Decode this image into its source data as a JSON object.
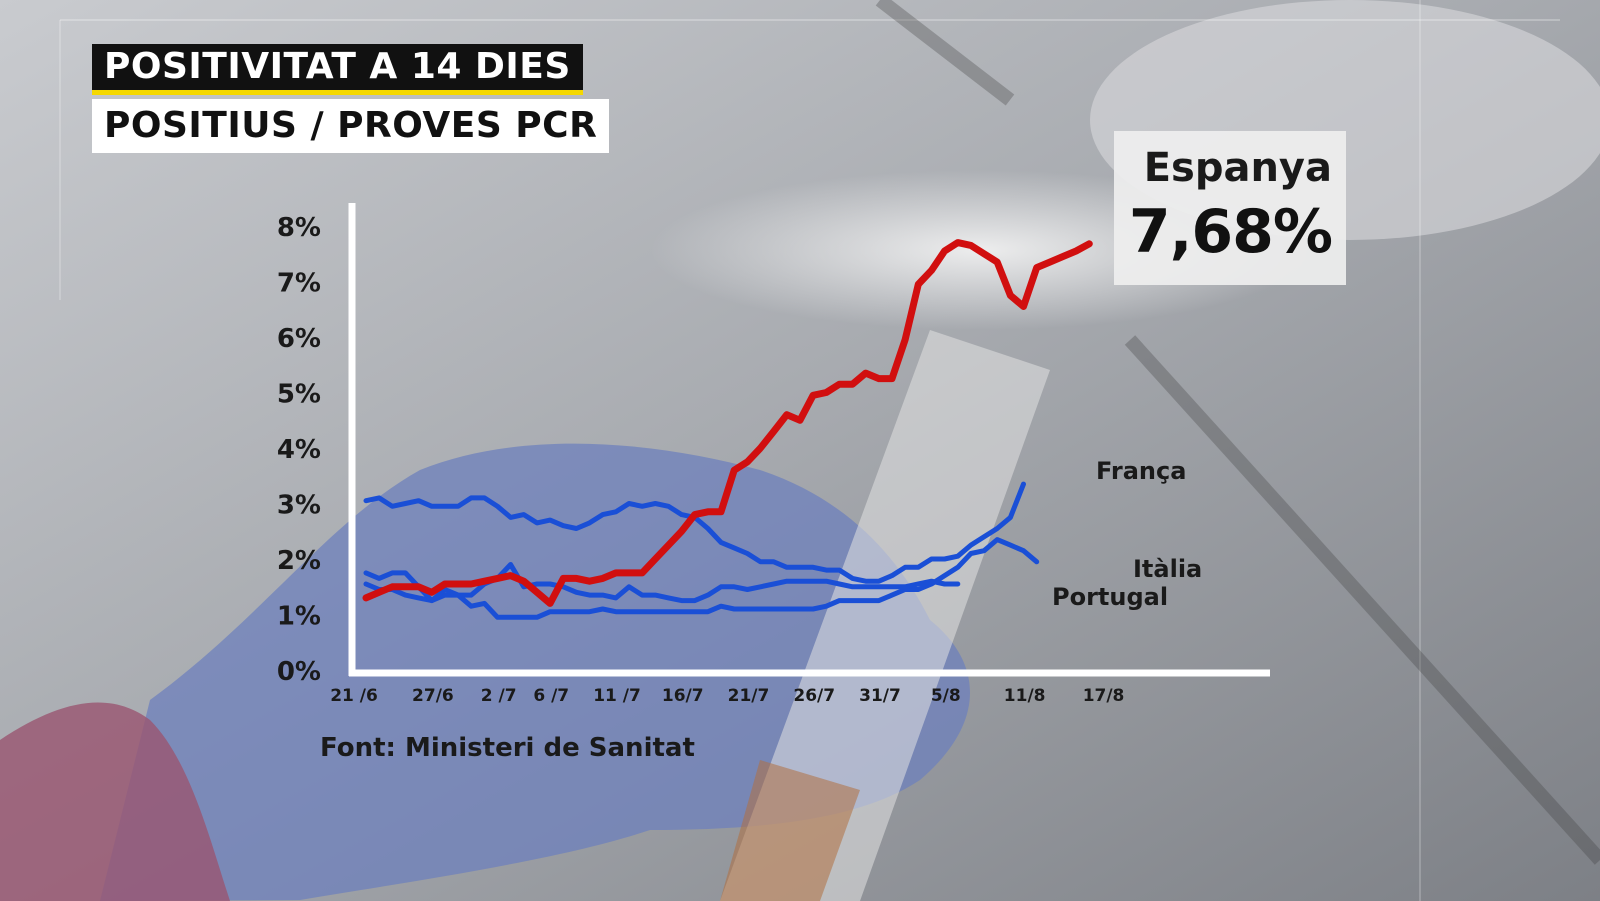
{
  "title": "POSITIVITAT A 14 DIES",
  "subtitle": "POSITIUS / PROVES PCR",
  "callout": {
    "country": "Espanya",
    "value": "7,68%"
  },
  "source": "Font: Ministeri de Sanitat",
  "colors": {
    "espanya": "#d10f0f",
    "others": "#1a4fd6",
    "accent": "#f5d800"
  },
  "chart_data": {
    "type": "line",
    "title": "POSITIVITAT A 14 DIES",
    "subtitle": "POSITIUS / PROVES PCR",
    "xlabel": "",
    "ylabel": "",
    "ylim": [
      0,
      8
    ],
    "grid": false,
    "yticks": [
      {
        "value": 0,
        "label": "0%"
      },
      {
        "value": 1,
        "label": "1%"
      },
      {
        "value": 2,
        "label": "2%"
      },
      {
        "value": 3,
        "label": "3%"
      },
      {
        "value": 4,
        "label": "4%"
      },
      {
        "value": 5,
        "label": "5%"
      },
      {
        "value": 6,
        "label": "6%"
      },
      {
        "value": 7,
        "label": "7%"
      },
      {
        "value": 8,
        "label": "8%"
      }
    ],
    "xticks": [
      {
        "day": 0,
        "label": "21 /6"
      },
      {
        "day": 6,
        "label": "27/6"
      },
      {
        "day": 11,
        "label": "2 /7"
      },
      {
        "day": 15,
        "label": "6 /7"
      },
      {
        "day": 20,
        "label": "11 /7"
      },
      {
        "day": 25,
        "label": "16/7"
      },
      {
        "day": 30,
        "label": "21/7"
      },
      {
        "day": 35,
        "label": "26/7"
      },
      {
        "day": 40,
        "label": "31/7"
      },
      {
        "day": 45,
        "label": "5/8"
      },
      {
        "day": 51,
        "label": "11/8"
      },
      {
        "day": 57,
        "label": "17/8"
      }
    ],
    "series": [
      {
        "name": "Espanya",
        "color": "#d10f0f",
        "width": 7,
        "points": [
          [
            0,
            1.3
          ],
          [
            1,
            1.4
          ],
          [
            2,
            1.5
          ],
          [
            3,
            1.5
          ],
          [
            4,
            1.5
          ],
          [
            5,
            1.4
          ],
          [
            6,
            1.55
          ],
          [
            7,
            1.55
          ],
          [
            8,
            1.55
          ],
          [
            9,
            1.6
          ],
          [
            10,
            1.65
          ],
          [
            11,
            1.7
          ],
          [
            12,
            1.6
          ],
          [
            13,
            1.4
          ],
          [
            14,
            1.2
          ],
          [
            15,
            1.65
          ],
          [
            16,
            1.65
          ],
          [
            17,
            1.6
          ],
          [
            18,
            1.65
          ],
          [
            19,
            1.75
          ],
          [
            20,
            1.75
          ],
          [
            21,
            1.75
          ],
          [
            22,
            2.0
          ],
          [
            23,
            2.25
          ],
          [
            24,
            2.5
          ],
          [
            25,
            2.8
          ],
          [
            26,
            2.85
          ],
          [
            27,
            2.85
          ],
          [
            28,
            3.6
          ],
          [
            29,
            3.75
          ],
          [
            30,
            4.0
          ],
          [
            31,
            4.3
          ],
          [
            32,
            4.6
          ],
          [
            33,
            4.5
          ],
          [
            34,
            4.95
          ],
          [
            35,
            5.0
          ],
          [
            36,
            5.15
          ],
          [
            37,
            5.15
          ],
          [
            38,
            5.35
          ],
          [
            39,
            5.25
          ],
          [
            40,
            5.25
          ],
          [
            41,
            5.95
          ],
          [
            42,
            6.95
          ],
          [
            43,
            7.2
          ],
          [
            44,
            7.55
          ],
          [
            45,
            7.7
          ],
          [
            46,
            7.65
          ],
          [
            47,
            7.5
          ],
          [
            48,
            7.35
          ],
          [
            49,
            6.75
          ],
          [
            50,
            6.55
          ],
          [
            51,
            7.25
          ],
          [
            52,
            7.35
          ],
          [
            53,
            7.45
          ],
          [
            54,
            7.55
          ],
          [
            55,
            7.68
          ]
        ]
      },
      {
        "name": "França",
        "color": "#1a4fd6",
        "width": 5,
        "points": [
          [
            0,
            3.05
          ],
          [
            1,
            3.1
          ],
          [
            2,
            2.95
          ],
          [
            3,
            3.0
          ],
          [
            4,
            3.05
          ],
          [
            5,
            2.95
          ],
          [
            6,
            2.95
          ],
          [
            7,
            2.95
          ],
          [
            8,
            3.1
          ],
          [
            9,
            3.1
          ],
          [
            10,
            2.95
          ],
          [
            11,
            2.75
          ],
          [
            12,
            2.8
          ],
          [
            13,
            2.65
          ],
          [
            14,
            2.7
          ],
          [
            15,
            2.6
          ],
          [
            16,
            2.55
          ],
          [
            17,
            2.65
          ],
          [
            18,
            2.8
          ],
          [
            19,
            2.85
          ],
          [
            20,
            3.0
          ],
          [
            21,
            2.95
          ],
          [
            22,
            3.0
          ],
          [
            23,
            2.95
          ],
          [
            24,
            2.8
          ],
          [
            25,
            2.75
          ],
          [
            26,
            2.55
          ],
          [
            27,
            2.3
          ],
          [
            28,
            2.2
          ],
          [
            29,
            2.1
          ],
          [
            30,
            1.95
          ],
          [
            31,
            1.95
          ],
          [
            32,
            1.85
          ],
          [
            33,
            1.85
          ],
          [
            34,
            1.85
          ],
          [
            35,
            1.8
          ],
          [
            36,
            1.8
          ],
          [
            37,
            1.65
          ],
          [
            38,
            1.6
          ],
          [
            39,
            1.6
          ],
          [
            40,
            1.7
          ],
          [
            41,
            1.85
          ],
          [
            42,
            1.85
          ],
          [
            43,
            2.0
          ],
          [
            44,
            2.0
          ],
          [
            45,
            2.05
          ],
          [
            46,
            2.25
          ],
          [
            47,
            2.4
          ],
          [
            48,
            2.55
          ],
          [
            49,
            2.75
          ],
          [
            50,
            3.35
          ]
        ]
      },
      {
        "name": "Itàlia",
        "color": "#1a4fd6",
        "width": 5,
        "points": [
          [
            0,
            1.55
          ],
          [
            1,
            1.45
          ],
          [
            2,
            1.45
          ],
          [
            3,
            1.35
          ],
          [
            4,
            1.3
          ],
          [
            5,
            1.25
          ],
          [
            6,
            1.35
          ],
          [
            7,
            1.35
          ],
          [
            8,
            1.15
          ],
          [
            9,
            1.2
          ],
          [
            10,
            0.95
          ],
          [
            11,
            0.95
          ],
          [
            12,
            0.95
          ],
          [
            13,
            0.95
          ],
          [
            14,
            1.05
          ],
          [
            15,
            1.05
          ],
          [
            16,
            1.05
          ],
          [
            17,
            1.05
          ],
          [
            18,
            1.1
          ],
          [
            19,
            1.05
          ],
          [
            20,
            1.05
          ],
          [
            21,
            1.05
          ],
          [
            22,
            1.05
          ],
          [
            23,
            1.05
          ],
          [
            24,
            1.05
          ],
          [
            25,
            1.05
          ],
          [
            26,
            1.05
          ],
          [
            27,
            1.15
          ],
          [
            28,
            1.1
          ],
          [
            29,
            1.1
          ],
          [
            30,
            1.1
          ],
          [
            31,
            1.1
          ],
          [
            32,
            1.1
          ],
          [
            33,
            1.1
          ],
          [
            34,
            1.1
          ],
          [
            35,
            1.15
          ],
          [
            36,
            1.25
          ],
          [
            37,
            1.25
          ],
          [
            38,
            1.25
          ],
          [
            39,
            1.25
          ],
          [
            40,
            1.35
          ],
          [
            41,
            1.45
          ],
          [
            42,
            1.45
          ],
          [
            43,
            1.55
          ],
          [
            44,
            1.7
          ],
          [
            45,
            1.85
          ],
          [
            46,
            2.1
          ],
          [
            47,
            2.15
          ],
          [
            48,
            2.35
          ],
          [
            49,
            2.25
          ],
          [
            50,
            2.15
          ],
          [
            51,
            1.95
          ]
        ]
      },
      {
        "name": "Portugal",
        "color": "#1a4fd6",
        "width": 5,
        "points": [
          [
            0,
            1.75
          ],
          [
            1,
            1.65
          ],
          [
            2,
            1.75
          ],
          [
            3,
            1.75
          ],
          [
            4,
            1.5
          ],
          [
            5,
            1.25
          ],
          [
            6,
            1.45
          ],
          [
            7,
            1.35
          ],
          [
            8,
            1.35
          ],
          [
            9,
            1.55
          ],
          [
            10,
            1.65
          ],
          [
            11,
            1.9
          ],
          [
            12,
            1.5
          ],
          [
            13,
            1.55
          ],
          [
            14,
            1.55
          ],
          [
            15,
            1.5
          ],
          [
            16,
            1.4
          ],
          [
            17,
            1.35
          ],
          [
            18,
            1.35
          ],
          [
            19,
            1.3
          ],
          [
            20,
            1.5
          ],
          [
            21,
            1.35
          ],
          [
            22,
            1.35
          ],
          [
            23,
            1.3
          ],
          [
            24,
            1.25
          ],
          [
            25,
            1.25
          ],
          [
            26,
            1.35
          ],
          [
            27,
            1.5
          ],
          [
            28,
            1.5
          ],
          [
            29,
            1.45
          ],
          [
            30,
            1.5
          ],
          [
            31,
            1.55
          ],
          [
            32,
            1.6
          ],
          [
            33,
            1.6
          ],
          [
            34,
            1.6
          ],
          [
            35,
            1.6
          ],
          [
            36,
            1.55
          ],
          [
            37,
            1.5
          ],
          [
            38,
            1.5
          ],
          [
            39,
            1.5
          ],
          [
            40,
            1.5
          ],
          [
            41,
            1.5
          ],
          [
            42,
            1.55
          ],
          [
            43,
            1.6
          ],
          [
            44,
            1.55
          ],
          [
            45,
            1.55
          ]
        ]
      }
    ],
    "series_labels": [
      {
        "name": "França"
      },
      {
        "name": "Itàlia"
      },
      {
        "name": "Portugal"
      }
    ],
    "annotation": {
      "series": "Espanya",
      "value": "7,68%"
    }
  }
}
